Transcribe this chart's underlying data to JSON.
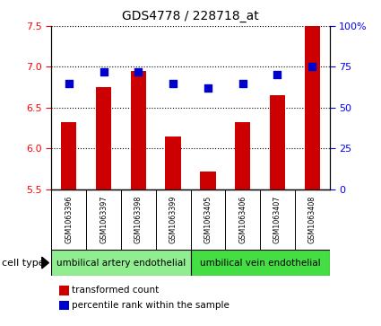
{
  "title": "GDS4778 / 228718_at",
  "samples": [
    "GSM1063396",
    "GSM1063397",
    "GSM1063398",
    "GSM1063399",
    "GSM1063405",
    "GSM1063406",
    "GSM1063407",
    "GSM1063408"
  ],
  "transformed_count": [
    6.32,
    6.75,
    6.95,
    6.15,
    5.72,
    6.32,
    6.65,
    7.5
  ],
  "percentile_rank": [
    65,
    72,
    72,
    65,
    62,
    65,
    70,
    75
  ],
  "ylim_left": [
    5.5,
    7.5
  ],
  "ylim_right": [
    0,
    100
  ],
  "yticks_left": [
    5.5,
    6.0,
    6.5,
    7.0,
    7.5
  ],
  "yticks_right": [
    0,
    25,
    50,
    75,
    100
  ],
  "ytick_labels_right": [
    "0",
    "25",
    "50",
    "75",
    "100%"
  ],
  "bar_color": "#cc0000",
  "dot_color": "#0000cc",
  "cell_type_label": "cell type",
  "cell_type_artery_label": "umbilical artery endothelial",
  "cell_type_vein_label": "umbilical vein endothelial",
  "cell_type_artery_color": "#90ee90",
  "cell_type_vein_color": "#44dd44",
  "label_box_color": "#c8c8c8",
  "legend_bar_label": "transformed count",
  "legend_dot_label": "percentile rank within the sample",
  "bar_width": 0.45,
  "dot_size": 28
}
